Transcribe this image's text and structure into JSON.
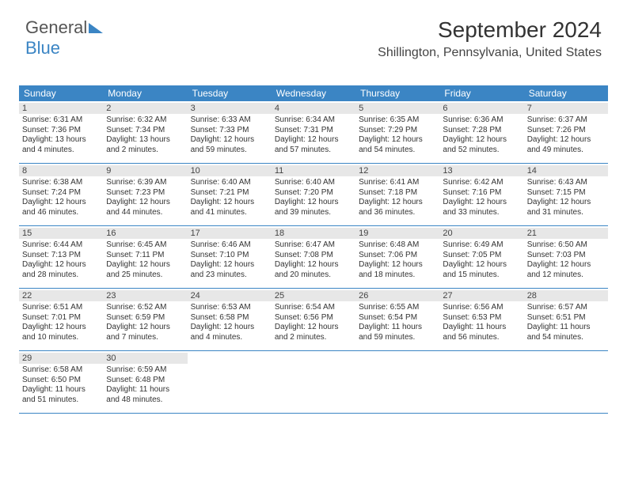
{
  "logo": {
    "text1": "General",
    "text2": "Blue"
  },
  "title": {
    "month": "September 2024",
    "location": "Shillington, Pennsylvania, United States"
  },
  "colors": {
    "accent": "#3b85c4",
    "daynum_bg": "#e7e7e7",
    "text": "#333333"
  },
  "headers": [
    "Sunday",
    "Monday",
    "Tuesday",
    "Wednesday",
    "Thursday",
    "Friday",
    "Saturday"
  ],
  "weeks": [
    [
      {
        "n": "1",
        "sr": "Sunrise: 6:31 AM",
        "ss": "Sunset: 7:36 PM",
        "d1": "Daylight: 13 hours",
        "d2": "and 4 minutes."
      },
      {
        "n": "2",
        "sr": "Sunrise: 6:32 AM",
        "ss": "Sunset: 7:34 PM",
        "d1": "Daylight: 13 hours",
        "d2": "and 2 minutes."
      },
      {
        "n": "3",
        "sr": "Sunrise: 6:33 AM",
        "ss": "Sunset: 7:33 PM",
        "d1": "Daylight: 12 hours",
        "d2": "and 59 minutes."
      },
      {
        "n": "4",
        "sr": "Sunrise: 6:34 AM",
        "ss": "Sunset: 7:31 PM",
        "d1": "Daylight: 12 hours",
        "d2": "and 57 minutes."
      },
      {
        "n": "5",
        "sr": "Sunrise: 6:35 AM",
        "ss": "Sunset: 7:29 PM",
        "d1": "Daylight: 12 hours",
        "d2": "and 54 minutes."
      },
      {
        "n": "6",
        "sr": "Sunrise: 6:36 AM",
        "ss": "Sunset: 7:28 PM",
        "d1": "Daylight: 12 hours",
        "d2": "and 52 minutes."
      },
      {
        "n": "7",
        "sr": "Sunrise: 6:37 AM",
        "ss": "Sunset: 7:26 PM",
        "d1": "Daylight: 12 hours",
        "d2": "and 49 minutes."
      }
    ],
    [
      {
        "n": "8",
        "sr": "Sunrise: 6:38 AM",
        "ss": "Sunset: 7:24 PM",
        "d1": "Daylight: 12 hours",
        "d2": "and 46 minutes."
      },
      {
        "n": "9",
        "sr": "Sunrise: 6:39 AM",
        "ss": "Sunset: 7:23 PM",
        "d1": "Daylight: 12 hours",
        "d2": "and 44 minutes."
      },
      {
        "n": "10",
        "sr": "Sunrise: 6:40 AM",
        "ss": "Sunset: 7:21 PM",
        "d1": "Daylight: 12 hours",
        "d2": "and 41 minutes."
      },
      {
        "n": "11",
        "sr": "Sunrise: 6:40 AM",
        "ss": "Sunset: 7:20 PM",
        "d1": "Daylight: 12 hours",
        "d2": "and 39 minutes."
      },
      {
        "n": "12",
        "sr": "Sunrise: 6:41 AM",
        "ss": "Sunset: 7:18 PM",
        "d1": "Daylight: 12 hours",
        "d2": "and 36 minutes."
      },
      {
        "n": "13",
        "sr": "Sunrise: 6:42 AM",
        "ss": "Sunset: 7:16 PM",
        "d1": "Daylight: 12 hours",
        "d2": "and 33 minutes."
      },
      {
        "n": "14",
        "sr": "Sunrise: 6:43 AM",
        "ss": "Sunset: 7:15 PM",
        "d1": "Daylight: 12 hours",
        "d2": "and 31 minutes."
      }
    ],
    [
      {
        "n": "15",
        "sr": "Sunrise: 6:44 AM",
        "ss": "Sunset: 7:13 PM",
        "d1": "Daylight: 12 hours",
        "d2": "and 28 minutes."
      },
      {
        "n": "16",
        "sr": "Sunrise: 6:45 AM",
        "ss": "Sunset: 7:11 PM",
        "d1": "Daylight: 12 hours",
        "d2": "and 25 minutes."
      },
      {
        "n": "17",
        "sr": "Sunrise: 6:46 AM",
        "ss": "Sunset: 7:10 PM",
        "d1": "Daylight: 12 hours",
        "d2": "and 23 minutes."
      },
      {
        "n": "18",
        "sr": "Sunrise: 6:47 AM",
        "ss": "Sunset: 7:08 PM",
        "d1": "Daylight: 12 hours",
        "d2": "and 20 minutes."
      },
      {
        "n": "19",
        "sr": "Sunrise: 6:48 AM",
        "ss": "Sunset: 7:06 PM",
        "d1": "Daylight: 12 hours",
        "d2": "and 18 minutes."
      },
      {
        "n": "20",
        "sr": "Sunrise: 6:49 AM",
        "ss": "Sunset: 7:05 PM",
        "d1": "Daylight: 12 hours",
        "d2": "and 15 minutes."
      },
      {
        "n": "21",
        "sr": "Sunrise: 6:50 AM",
        "ss": "Sunset: 7:03 PM",
        "d1": "Daylight: 12 hours",
        "d2": "and 12 minutes."
      }
    ],
    [
      {
        "n": "22",
        "sr": "Sunrise: 6:51 AM",
        "ss": "Sunset: 7:01 PM",
        "d1": "Daylight: 12 hours",
        "d2": "and 10 minutes."
      },
      {
        "n": "23",
        "sr": "Sunrise: 6:52 AM",
        "ss": "Sunset: 6:59 PM",
        "d1": "Daylight: 12 hours",
        "d2": "and 7 minutes."
      },
      {
        "n": "24",
        "sr": "Sunrise: 6:53 AM",
        "ss": "Sunset: 6:58 PM",
        "d1": "Daylight: 12 hours",
        "d2": "and 4 minutes."
      },
      {
        "n": "25",
        "sr": "Sunrise: 6:54 AM",
        "ss": "Sunset: 6:56 PM",
        "d1": "Daylight: 12 hours",
        "d2": "and 2 minutes."
      },
      {
        "n": "26",
        "sr": "Sunrise: 6:55 AM",
        "ss": "Sunset: 6:54 PM",
        "d1": "Daylight: 11 hours",
        "d2": "and 59 minutes."
      },
      {
        "n": "27",
        "sr": "Sunrise: 6:56 AM",
        "ss": "Sunset: 6:53 PM",
        "d1": "Daylight: 11 hours",
        "d2": "and 56 minutes."
      },
      {
        "n": "28",
        "sr": "Sunrise: 6:57 AM",
        "ss": "Sunset: 6:51 PM",
        "d1": "Daylight: 11 hours",
        "d2": "and 54 minutes."
      }
    ],
    [
      {
        "n": "29",
        "sr": "Sunrise: 6:58 AM",
        "ss": "Sunset: 6:50 PM",
        "d1": "Daylight: 11 hours",
        "d2": "and 51 minutes."
      },
      {
        "n": "30",
        "sr": "Sunrise: 6:59 AM",
        "ss": "Sunset: 6:48 PM",
        "d1": "Daylight: 11 hours",
        "d2": "and 48 minutes."
      },
      null,
      null,
      null,
      null,
      null
    ]
  ]
}
